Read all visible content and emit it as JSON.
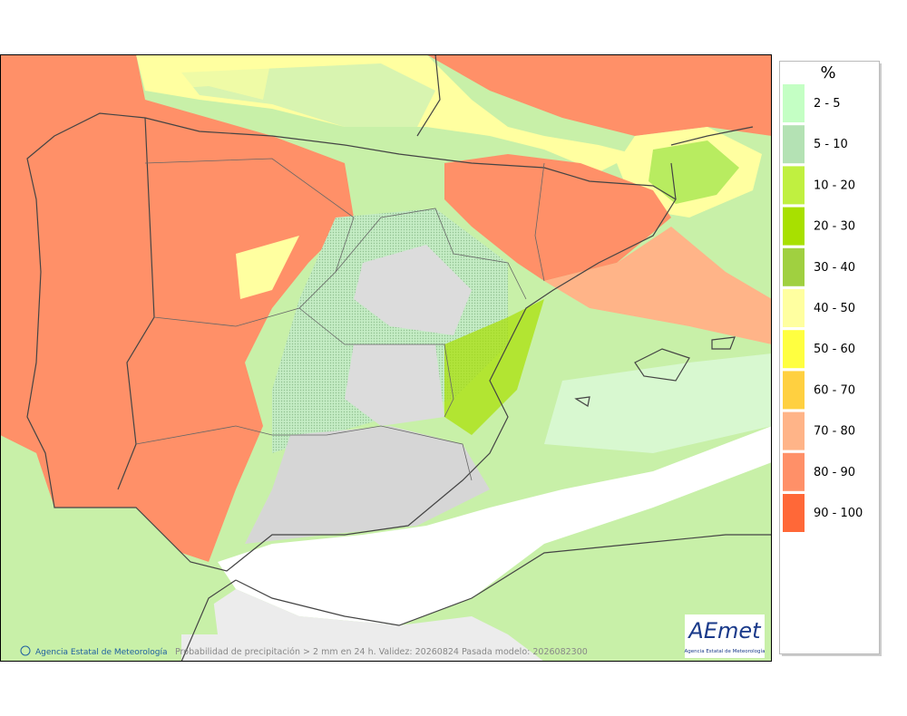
{
  "legend": {
    "unit": "%",
    "items": [
      {
        "label": "2 - 5",
        "color": "#c4ffc4"
      },
      {
        "label": "5 - 10",
        "color": "#b4e2b4"
      },
      {
        "label": "10 - 20",
        "color": "#c0f040"
      },
      {
        "label": "20 - 30",
        "color": "#a8e000"
      },
      {
        "label": "30 - 40",
        "color": "#a0d040"
      },
      {
        "label": "40 - 50",
        "color": "#ffffa0"
      },
      {
        "label": "50 - 60",
        "color": "#ffff40"
      },
      {
        "label": "60 - 70",
        "color": "#ffd040"
      },
      {
        "label": "70 - 80",
        "color": "#ffb488"
      },
      {
        "label": "80 - 90",
        "color": "#ff9068"
      },
      {
        "label": "90 - 100",
        "color": "#ff6838"
      }
    ]
  },
  "footer": {
    "credit": "Agencia Estatal de Meteorología",
    "caption": "Probabilidad de precipitación > 2 mm en 24 h. Validez: 20260824 Pasada modelo: 2026082300"
  },
  "logo": {
    "name": "AEmet",
    "subtitle": "Agencia Estatal de Meteorología"
  }
}
